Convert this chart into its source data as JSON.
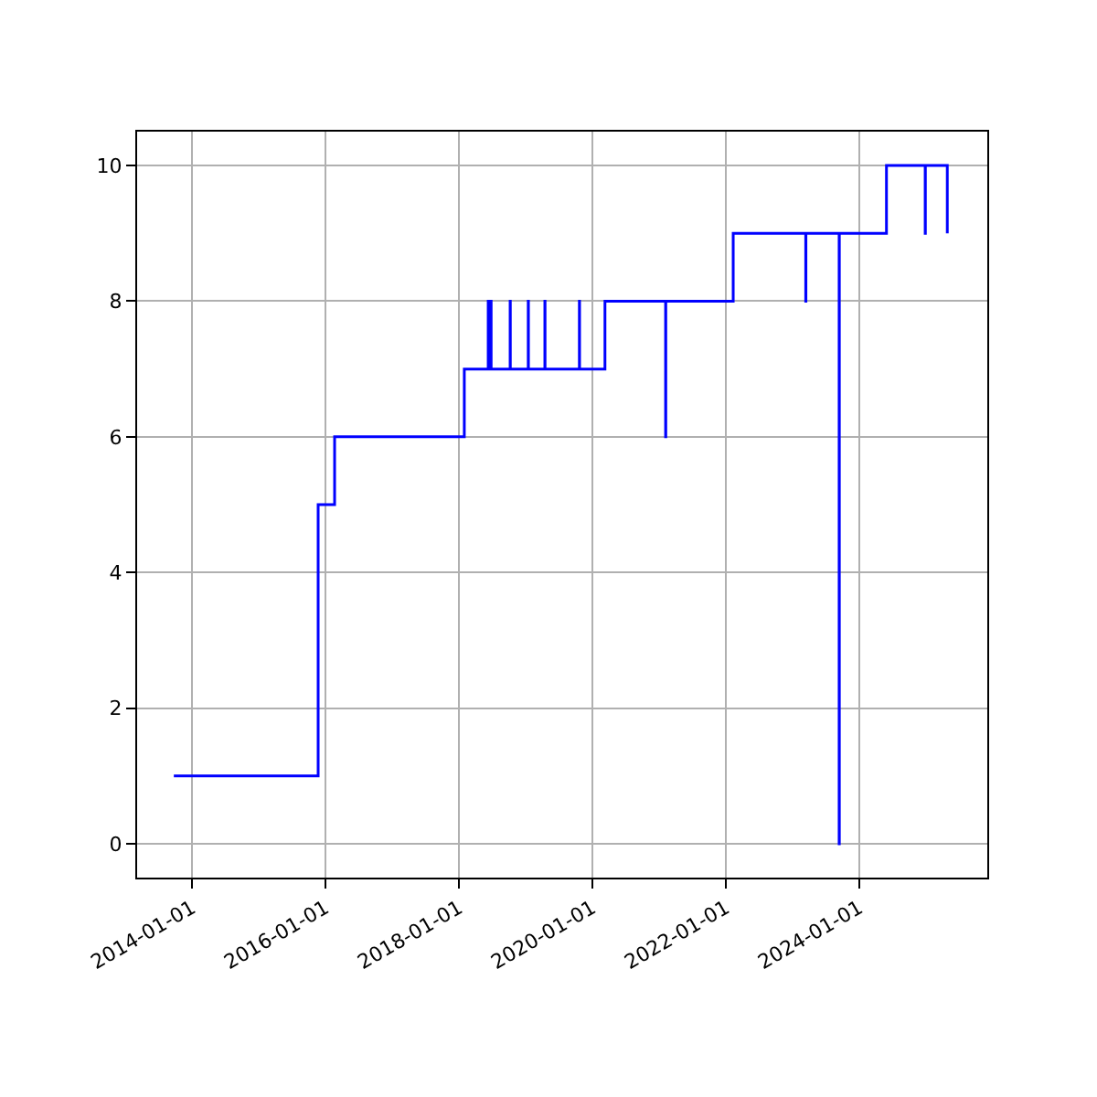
{
  "chart_data": {
    "type": "step",
    "x": [
      "2013-09-23",
      "2015-11-22",
      "2016-02-20",
      "2018-01-30",
      "2018-06-10",
      "2018-06-11",
      "2018-06-14",
      "2018-06-15",
      "2018-06-22",
      "2018-06-23",
      "2018-06-25",
      "2018-06-26",
      "2018-10-08",
      "2018-10-09",
      "2019-01-15",
      "2019-01-16",
      "2019-04-16",
      "2019-04-17",
      "2019-10-22",
      "2019-10-23",
      "2020-03-10",
      "2021-02-05",
      "2021-02-06",
      "2022-02-10",
      "2023-03-14",
      "2023-03-15",
      "2023-09-13",
      "2023-09-14",
      "2024-05-29",
      "2024-12-27",
      "2024-12-28",
      "2025-04-27"
    ],
    "series": [
      {
        "color": "#0000ff",
        "values": [
          1,
          5,
          6,
          7,
          8,
          7,
          8,
          7,
          8,
          7,
          8,
          7,
          8,
          7,
          8,
          7,
          8,
          7,
          8,
          7,
          8,
          6,
          8,
          9,
          8,
          9,
          0,
          9,
          10,
          9,
          10,
          9
        ]
      }
    ],
    "xlim": [
      "2013-03-06",
      "2025-12-02"
    ],
    "xticks": [
      {
        "value": "2014-01-01",
        "label": "2014-01-01"
      },
      {
        "value": "2016-01-01",
        "label": "2016-01-01"
      },
      {
        "value": "2018-01-01",
        "label": "2018-01-01"
      },
      {
        "value": "2020-01-01",
        "label": "2020-01-01"
      },
      {
        "value": "2022-01-01",
        "label": "2022-01-01"
      },
      {
        "value": "2024-01-01",
        "label": "2024-01-01"
      }
    ],
    "ylim": [
      -0.5,
      10.5
    ],
    "yticks": [
      0,
      2,
      4,
      6,
      8,
      10
    ],
    "grid": true
  }
}
